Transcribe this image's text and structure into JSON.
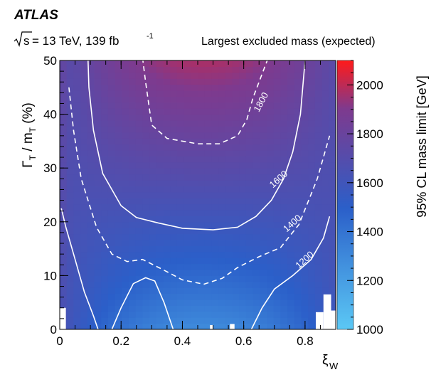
{
  "header": {
    "experiment": "ATLAS",
    "energy_prefix": "s",
    "energy_rest": " = 13 TeV, 139 fb",
    "lumi_exp": "-1",
    "subtitle": "Largest excluded mass (expected)"
  },
  "colors": {
    "low": "#5bc8f5",
    "mid": "#2b5fc9",
    "upper": "#7e3a8e",
    "high": "#ff1a1a",
    "contour": "#ffffff"
  },
  "chart_data": {
    "type": "heatmap",
    "title": "",
    "xlabel": {
      "main": "ξ",
      "sub": "W"
    },
    "ylabel": {
      "pre": "Γ",
      "sub1": "T",
      "mid": " / m",
      "sub2": "T",
      "post": " (%)"
    },
    "zlabel": "95% CL mass limit [GeV]",
    "xlim": [
      0,
      0.9
    ],
    "ylim": [
      0,
      50
    ],
    "zlim": [
      1000,
      2100
    ],
    "x_ticks": [
      "0",
      "0.2",
      "0.4",
      "0.6",
      "0.8"
    ],
    "x_tick_values": [
      0,
      0.2,
      0.4,
      0.6,
      0.8
    ],
    "y_ticks": [
      "0",
      "10",
      "20",
      "30",
      "40",
      "50"
    ],
    "y_tick_values": [
      0,
      10,
      20,
      30,
      40,
      50
    ],
    "z_ticks": [
      "1000",
      "1200",
      "1400",
      "1600",
      "1800",
      "2000"
    ],
    "z_tick_values": [
      1000,
      1200,
      1400,
      1600,
      1800,
      2000
    ],
    "grid": false,
    "contours": [
      {
        "level": 1200,
        "label": "1200",
        "style": "solid",
        "segments": [
          [
            [
              0.005,
              22.5
            ],
            [
              0.02,
              19
            ],
            [
              0.05,
              13
            ],
            [
              0.08,
              7
            ],
            [
              0.11,
              2.5
            ],
            [
              0.125,
              0
            ]
          ],
          [
            [
              0.17,
              0
            ],
            [
              0.2,
              4
            ],
            [
              0.24,
              8.5
            ],
            [
              0.28,
              9.6
            ],
            [
              0.31,
              9
            ],
            [
              0.34,
              5
            ],
            [
              0.37,
              0
            ]
          ],
          [
            [
              0.625,
              0
            ],
            [
              0.66,
              4
            ],
            [
              0.7,
              7.5
            ],
            [
              0.76,
              10
            ],
            [
              0.82,
              13
            ],
            [
              0.86,
              17
            ],
            [
              0.88,
              21
            ]
          ]
        ],
        "label_at": [
          0.805,
          12.5
        ],
        "label_angle": -42
      },
      {
        "level": 1400,
        "label": "1400",
        "style": "dashed",
        "segments": [
          [
            [
              0.03,
              45
            ],
            [
              0.045,
              37
            ],
            [
              0.07,
              28
            ],
            [
              0.12,
              19
            ],
            [
              0.17,
              14
            ],
            [
              0.22,
              12.6
            ],
            [
              0.27,
              13
            ],
            [
              0.34,
              11
            ],
            [
              0.4,
              9.2
            ],
            [
              0.47,
              8.4
            ],
            [
              0.53,
              9.5
            ],
            [
              0.58,
              11.5
            ],
            [
              0.65,
              13.5
            ],
            [
              0.72,
              15.2
            ],
            [
              0.78,
              19.5
            ],
            [
              0.84,
              28
            ],
            [
              0.88,
              36
            ]
          ]
        ],
        "label_at": [
          0.765,
          19.3
        ],
        "label_angle": -42
      },
      {
        "level": 1600,
        "label": "1600",
        "style": "solid",
        "segments": [
          [
            [
              0.09,
              54
            ],
            [
              0.095,
              45
            ],
            [
              0.11,
              37
            ],
            [
              0.14,
              29
            ],
            [
              0.2,
              23
            ],
            [
              0.25,
              20.8
            ],
            [
              0.32,
              19.8
            ],
            [
              0.4,
              18.8
            ],
            [
              0.5,
              18.5
            ],
            [
              0.58,
              19
            ],
            [
              0.64,
              21
            ],
            [
              0.69,
              24
            ],
            [
              0.73,
              28
            ],
            [
              0.76,
              33
            ],
            [
              0.785,
              40
            ],
            [
              0.8,
              50
            ]
          ]
        ],
        "label_at": [
          0.72,
          27.5
        ],
        "label_angle": -42
      },
      {
        "level": 1800,
        "label": "1800",
        "style": "dashed",
        "segments": [
          [
            [
              0.27,
              50.5
            ],
            [
              0.28,
              46
            ],
            [
              0.3,
              38
            ],
            [
              0.35,
              35.5
            ],
            [
              0.45,
              34.5
            ],
            [
              0.52,
              34.5
            ],
            [
              0.58,
              36
            ],
            [
              0.61,
              39
            ],
            [
              0.63,
              43
            ],
            [
              0.66,
              47.5
            ],
            [
              0.68,
              50.5
            ]
          ]
        ],
        "label_at": [
          0.665,
          42
        ],
        "label_angle": -62
      }
    ],
    "blank_cells": [
      [
        [
          0.0,
          0.0
        ],
        [
          0.02,
          4.0
        ]
      ],
      [
        [
          0.835,
          0.0
        ],
        [
          0.86,
          3.2
        ]
      ],
      [
        [
          0.86,
          0.0
        ],
        [
          0.885,
          6.5
        ]
      ],
      [
        [
          0.885,
          0.0
        ],
        [
          0.9,
          3.5
        ]
      ],
      [
        [
          0.555,
          0.0
        ],
        [
          0.57,
          1.0
        ]
      ],
      [
        [
          0.49,
          0.0
        ],
        [
          0.5,
          0.8
        ]
      ]
    ]
  }
}
